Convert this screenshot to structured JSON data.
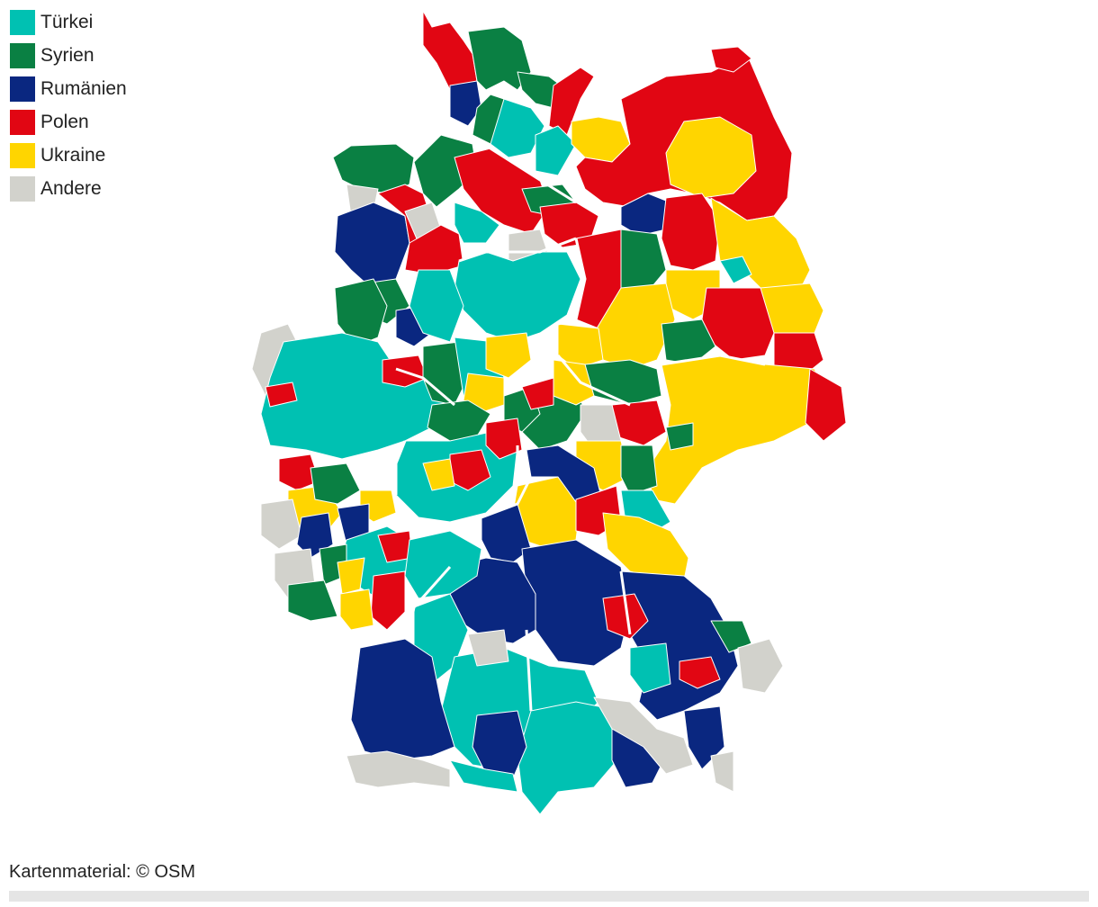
{
  "legend": [
    {
      "label": "Türkei",
      "color": "#00c1b2"
    },
    {
      "label": "Syrien",
      "color": "#0a8043"
    },
    {
      "label": "Rumänien",
      "color": "#0a2780"
    },
    {
      "label": "Polen",
      "color": "#e10613"
    },
    {
      "label": "Ukraine",
      "color": "#ffd500"
    },
    {
      "label": "Andere",
      "color": "#d2d2cc"
    }
  ],
  "footer": {
    "credit": "Kartenmaterial: © OSM"
  }
}
